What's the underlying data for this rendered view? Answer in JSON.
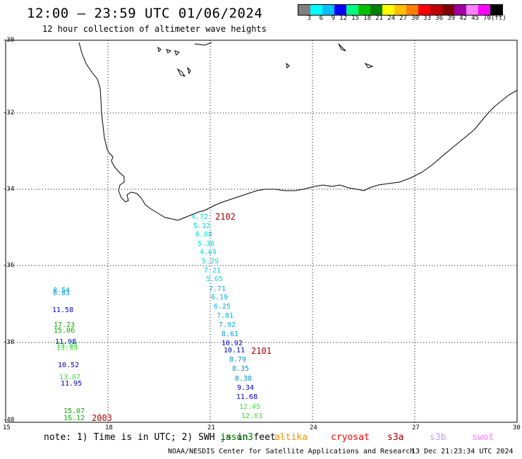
{
  "header": {
    "title": "12:00 — 23:59 UTC 01/06/2024",
    "subtitle": "12 hour collection of altimeter wave heights"
  },
  "legend": {
    "colors": [
      "#808080",
      "#00ffff",
      "#00bfff",
      "#0000ff",
      "#00ff80",
      "#00c000",
      "#008000",
      "#ffff00",
      "#ffc000",
      "#ff8000",
      "#ff0000",
      "#c00000",
      "#800000",
      "#a000a0",
      "#ff80ff",
      "#ff00ff",
      "#000000"
    ],
    "labels": [
      "3",
      "6",
      "9",
      "12",
      "15",
      "18",
      "21",
      "24",
      "27",
      "30",
      "33",
      "36",
      "39",
      "42",
      "45",
      "70",
      "(ft)"
    ]
  },
  "axes": {
    "y_labels": [
      "-30",
      "-32",
      "-34",
      "-36",
      "-38",
      "-40"
    ],
    "x_labels": [
      "15",
      "18",
      "21",
      "24",
      "27",
      "30"
    ]
  },
  "observations": [
    {
      "text": "4.72",
      "color": "#00e0e0"
    },
    {
      "text": "5.12",
      "color": "#00e0e0"
    },
    {
      "text": "6.00",
      "color": "#00e0e0"
    },
    {
      "text": "5.38",
      "color": "#00e0e0"
    },
    {
      "text": "4.69",
      "color": "#00e0e0"
    },
    {
      "text": "5.29",
      "color": "#00e0e0"
    },
    {
      "text": "7.21",
      "color": "#00c8f0"
    },
    {
      "text": "5.65",
      "color": "#00e0e0"
    },
    {
      "text": "7.71",
      "color": "#00b0e8"
    },
    {
      "text": "6.19",
      "color": "#00b0e8"
    },
    {
      "text": "6.25",
      "color": "#00b0e8"
    },
    {
      "text": "7.81",
      "color": "#00b0e8"
    },
    {
      "text": "7.92",
      "color": "#00b0e8"
    },
    {
      "text": "8.61",
      "color": "#00a0e0"
    },
    {
      "text": "10.92",
      "color": "#0000c0"
    },
    {
      "text": "10.11",
      "color": "#0000c0"
    },
    {
      "text": "8.79",
      "color": "#0090d8"
    },
    {
      "text": "8.35",
      "color": "#0090d8"
    },
    {
      "text": "8.38",
      "color": "#0090d8"
    },
    {
      "text": "9.34",
      "color": "#0000c0"
    },
    {
      "text": "11.68",
      "color": "#0000c0"
    },
    {
      "text": "12.45",
      "color": "#40e040"
    },
    {
      "text": "12.63",
      "color": "#40e040"
    },
    {
      "text": "8.54",
      "color": "#00a0e0"
    },
    {
      "text": "8.83",
      "color": "#00a0e0"
    },
    {
      "text": "11.58",
      "color": "#0000c0"
    },
    {
      "text": "17.23",
      "color": "#00b000"
    },
    {
      "text": "15.06",
      "color": "#00b000"
    },
    {
      "text": "11.98",
      "color": "#0000c0"
    },
    {
      "text": "13.84",
      "color": "#40e040"
    },
    {
      "text": "13.44",
      "color": "#40e040"
    },
    {
      "text": "10.52",
      "color": "#0000c0"
    },
    {
      "text": "13.87",
      "color": "#40e040"
    },
    {
      "text": "11.95",
      "color": "#0000c0"
    },
    {
      "text": "15.07",
      "color": "#00b000"
    },
    {
      "text": "15.12",
      "color": "#00b000"
    }
  ],
  "passes": [
    "2102",
    "2101",
    "2003"
  ],
  "note": {
    "prefix": "note: 1) Time is in UTC; 2) SWH is in feet",
    "satellites": [
      {
        "name": "jason3",
        "color": "#008000"
      },
      {
        "name": "altika",
        "color": "#ff8c00"
      },
      {
        "name": "cryosat",
        "color": "#ff0000"
      },
      {
        "name": "s3a",
        "color": "#a00000"
      },
      {
        "name": "s3b",
        "color": "#c0a0ff"
      },
      {
        "name": "swot",
        "color": "#ff80ff"
      }
    ]
  },
  "footer": {
    "credit": "NOAA/NESDIS Center for Satellite Applications and Research",
    "timestamp": "13 Dec 21:23:34 UTC 2024"
  }
}
